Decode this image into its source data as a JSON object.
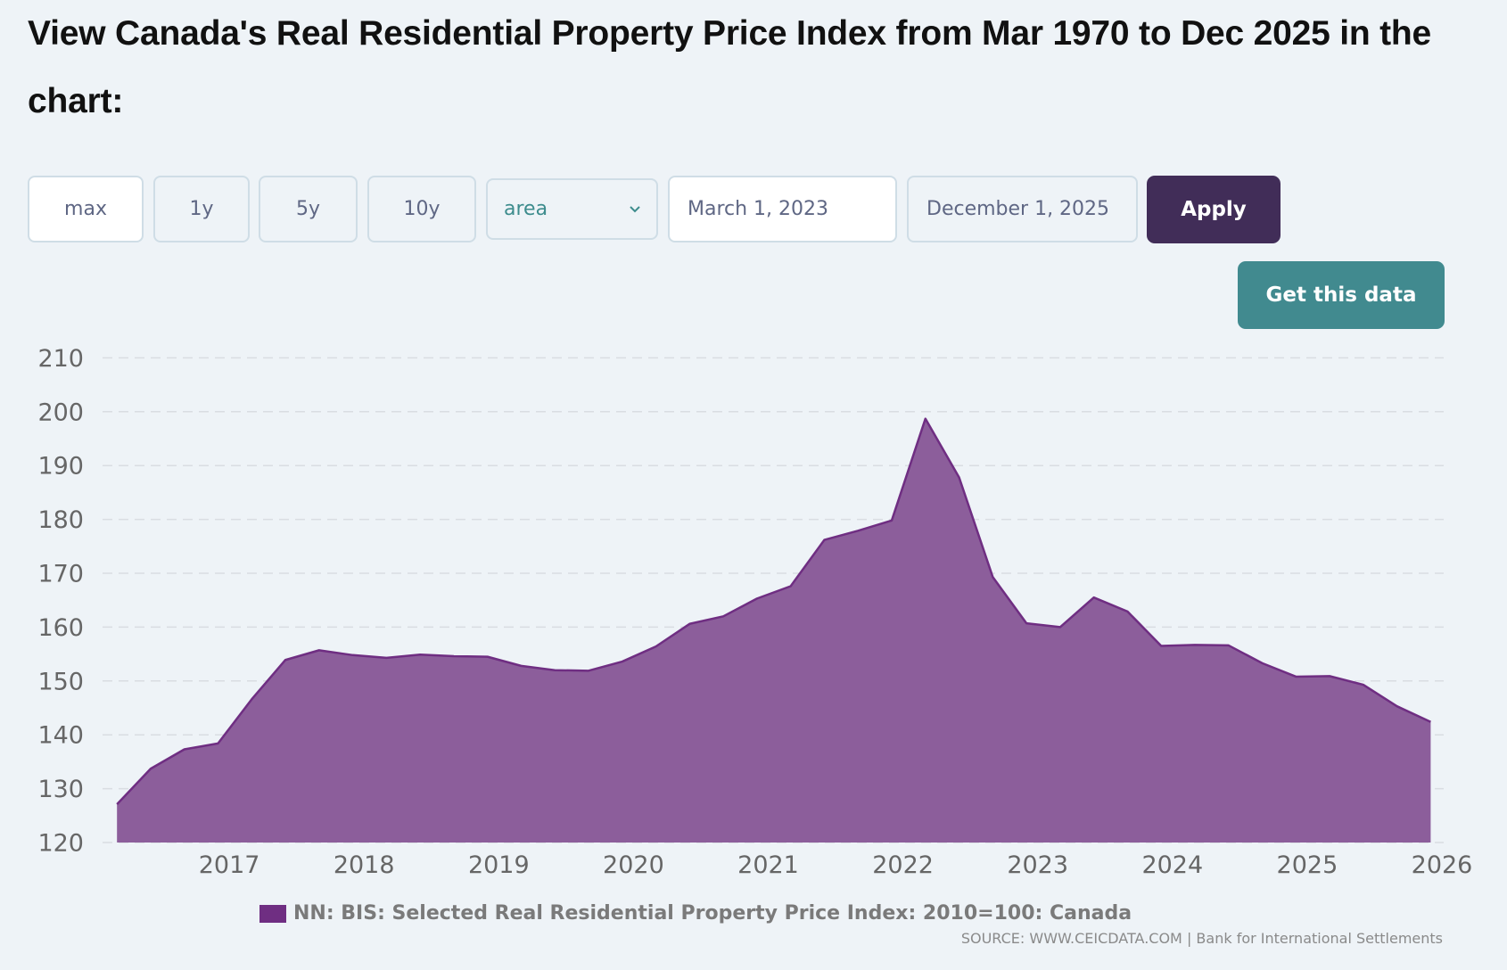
{
  "page": {
    "title": "View Canada's Real Residential Property Price Index from Mar 1970 to Dec 2025 in the chart:"
  },
  "controls": {
    "range_buttons": [
      {
        "label": "max",
        "active": true
      },
      {
        "label": "1y",
        "active": false
      },
      {
        "label": "5y",
        "active": false
      },
      {
        "label": "10y",
        "active": false
      }
    ],
    "chart_type_select": {
      "value": "area",
      "icon": "chevron-down-icon"
    },
    "start_date": "March 1, 2023",
    "end_date": "December 1, 2025",
    "apply_label": "Apply",
    "get_data_label": "Get this data"
  },
  "colors": {
    "background": "#eef3f7",
    "series_line": "#6f2e82",
    "series_fill": "#8c5e9b",
    "apply_button": "#412d58",
    "get_data_button": "#418a8f",
    "select_text": "#3d8c8d"
  },
  "chart_data": {
    "type": "area",
    "title": "",
    "xlabel": "",
    "ylabel": "",
    "ylim": [
      120,
      210
    ],
    "yticks": [
      120,
      130,
      140,
      150,
      160,
      170,
      180,
      190,
      200,
      210
    ],
    "xlim": [
      2016,
      2026
    ],
    "xticks": [
      2017,
      2018,
      2019,
      2020,
      2021,
      2022,
      2023,
      2024,
      2025,
      2026
    ],
    "grid": true,
    "legend_position": "bottom",
    "series": [
      {
        "name": "NN: BIS: Selected Real Residential Property Price Index: 2010=100: Canada",
        "x": [
          "2016-03",
          "2016-06",
          "2016-09",
          "2016-12",
          "2017-03",
          "2017-06",
          "2017-09",
          "2017-12",
          "2018-03",
          "2018-06",
          "2018-09",
          "2018-12",
          "2019-03",
          "2019-06",
          "2019-09",
          "2019-12",
          "2020-03",
          "2020-06",
          "2020-09",
          "2020-12",
          "2021-03",
          "2021-06",
          "2021-09",
          "2021-12",
          "2022-03",
          "2022-06",
          "2022-09",
          "2022-12",
          "2023-03",
          "2023-06",
          "2023-09",
          "2023-12",
          "2024-03",
          "2024-06",
          "2024-09",
          "2024-12",
          "2025-03",
          "2025-06",
          "2025-09",
          "2025-12"
        ],
        "values": [
          127.1,
          133.7,
          137.3,
          138.4,
          146.6,
          153.9,
          155.7,
          154.8,
          154.3,
          154.9,
          154.6,
          154.5,
          152.8,
          152.0,
          151.9,
          153.6,
          156.4,
          160.6,
          162.0,
          165.3,
          167.6,
          176.2,
          177.9,
          179.8,
          198.7,
          187.8,
          169.3,
          160.7,
          160.0,
          165.5,
          162.9,
          156.5,
          156.7,
          156.6,
          153.3,
          150.8,
          150.9,
          149.3,
          145.3,
          142.4
        ]
      }
    ],
    "source": "SOURCE: WWW.CEICDATA.COM | Bank for International Settlements"
  }
}
